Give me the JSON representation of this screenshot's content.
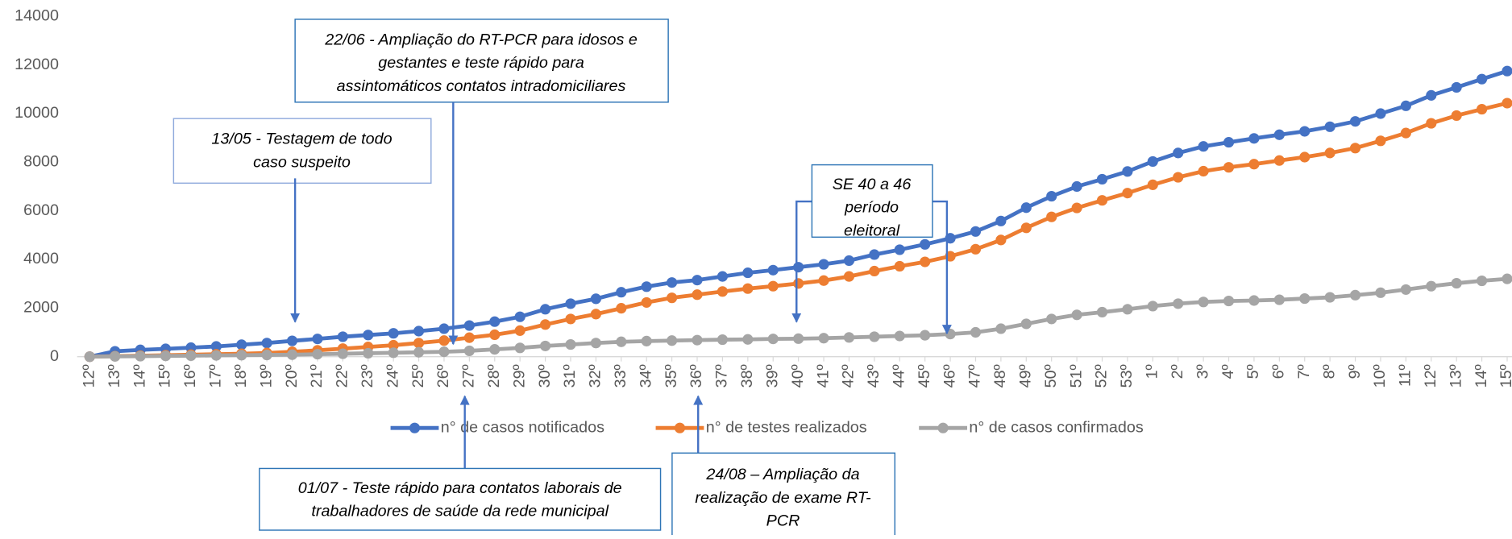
{
  "chart_data": {
    "type": "line",
    "categories": [
      "12º",
      "13º",
      "14º",
      "15º",
      "16º",
      "17º",
      "18º",
      "19º",
      "20º",
      "21º",
      "22º",
      "23º",
      "24º",
      "25º",
      "26º",
      "27º",
      "28º",
      "29º",
      "30º",
      "31º",
      "32º",
      "33º",
      "34º",
      "35º",
      "36º",
      "37º",
      "38º",
      "39º",
      "40º",
      "41º",
      "42º",
      "43º",
      "44º",
      "45º",
      "46º",
      "47º",
      "48º",
      "49º",
      "50º",
      "51º",
      "52º",
      "53º",
      "1º",
      "2º",
      "3º",
      "4º",
      "5º",
      "6º",
      "7º",
      "8º",
      "9º",
      "10º",
      "11º",
      "12º",
      "13º",
      "14º",
      "15º"
    ],
    "series": [
      {
        "name": "n° de casos notificados",
        "color": "#4472c4",
        "values": [
          0,
          220,
          280,
          320,
          370,
          420,
          490,
          560,
          650,
          730,
          820,
          890,
          960,
          1050,
          1150,
          1280,
          1440,
          1640,
          1950,
          2180,
          2380,
          2650,
          2880,
          3050,
          3150,
          3300,
          3450,
          3560,
          3680,
          3800,
          3950,
          4200,
          4400,
          4620,
          4870,
          5150,
          5580,
          6130,
          6600,
          7000,
          7300,
          7620,
          8030,
          8380,
          8650,
          8820,
          8980,
          9130,
          9270,
          9460,
          9680,
          10000,
          10320,
          10750,
          11080,
          11420,
          11750
        ]
      },
      {
        "name": "n° de testes realizados",
        "color": "#ed7d31",
        "values": [
          0,
          20,
          40,
          60,
          80,
          100,
          120,
          150,
          200,
          260,
          330,
          400,
          470,
          560,
          660,
          780,
          900,
          1070,
          1320,
          1550,
          1750,
          1990,
          2230,
          2420,
          2550,
          2680,
          2800,
          2900,
          3010,
          3130,
          3300,
          3520,
          3720,
          3900,
          4130,
          4420,
          4800,
          5300,
          5750,
          6120,
          6430,
          6730,
          7070,
          7380,
          7630,
          7790,
          7920,
          8070,
          8210,
          8380,
          8580,
          8880,
          9200,
          9600,
          9920,
          10180,
          10430
        ]
      },
      {
        "name": "n° de casos confirmados",
        "color": "#a5a5a5",
        "values": [
          0,
          10,
          20,
          30,
          40,
          50,
          60,
          70,
          80,
          100,
          120,
          140,
          160,
          180,
          200,
          240,
          300,
          360,
          440,
          500,
          560,
          610,
          640,
          660,
          680,
          700,
          710,
          730,
          740,
          760,
          790,
          820,
          850,
          880,
          930,
          1000,
          1150,
          1350,
          1550,
          1720,
          1830,
          1950,
          2080,
          2180,
          2250,
          2290,
          2310,
          2340,
          2390,
          2440,
          2530,
          2630,
          2760,
          2900,
          3020,
          3120,
          3200
        ]
      }
    ],
    "ylim": [
      0,
      14000
    ],
    "yticks": [
      0,
      2000,
      4000,
      6000,
      8000,
      10000,
      12000,
      14000
    ],
    "grid": false,
    "legend": "bottom",
    "annotations": [
      {
        "lines": [
          "13/05 - Testagem de todo",
          "caso suspeito"
        ]
      },
      {
        "lines": [
          "22/06 - Ampliação do RT-PCR para idosos e",
          "gestantes e teste rápido para",
          "assintomáticos contatos intradomiciliares"
        ]
      },
      {
        "lines": [
          "SE 40 a 46",
          "período",
          "eleitoral"
        ]
      },
      {
        "lines": [
          "01/07 - Teste rápido para contatos laborais de",
          "trabalhadores de saúde da rede municipal"
        ]
      },
      {
        "lines": [
          "24/08 – Ampliação da",
          "realização de exame RT-",
          "PCR"
        ]
      }
    ]
  }
}
